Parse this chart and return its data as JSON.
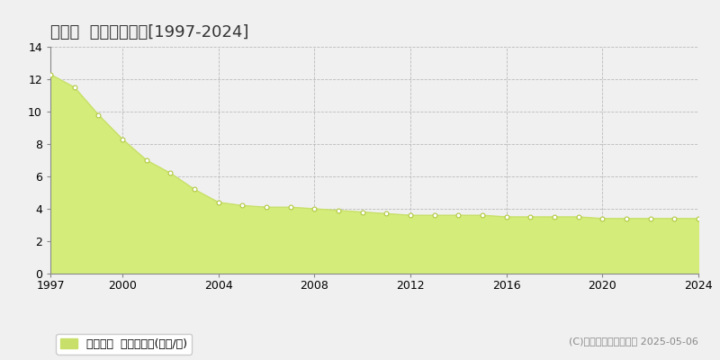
{
  "title": "長柄町  基準地価推移[1997-2024]",
  "years": [
    1997,
    1998,
    1999,
    2000,
    2001,
    2002,
    2003,
    2004,
    2005,
    2006,
    2007,
    2008,
    2009,
    2010,
    2011,
    2012,
    2013,
    2014,
    2015,
    2016,
    2017,
    2018,
    2019,
    2020,
    2021,
    2022,
    2023,
    2024
  ],
  "values": [
    12.3,
    11.5,
    9.8,
    8.3,
    7.0,
    6.2,
    5.2,
    4.4,
    4.2,
    4.1,
    4.1,
    4.0,
    3.9,
    3.8,
    3.7,
    3.6,
    3.6,
    3.6,
    3.6,
    3.5,
    3.5,
    3.5,
    3.5,
    3.4,
    3.4,
    3.4,
    3.4,
    3.4
  ],
  "line_color": "#c8e06a",
  "fill_color": "#d4ed7a",
  "marker_color": "#ffffff",
  "marker_edge_color": "#b0c840",
  "background_color": "#f0f0f0",
  "plot_bg_color": "#f0f0f0",
  "grid_color": "#bbbbbb",
  "ylim": [
    0,
    14
  ],
  "yticks": [
    0,
    2,
    4,
    6,
    8,
    10,
    12,
    14
  ],
  "xticks": [
    1997,
    2000,
    2004,
    2008,
    2012,
    2016,
    2020,
    2024
  ],
  "legend_label": "基準地価  平均坊単価(万円/坊)",
  "legend_color": "#c8e06a",
  "copyright_text": "(C)土地価格ドットコム 2025-05-06",
  "title_fontsize": 13,
  "tick_fontsize": 9,
  "legend_fontsize": 9,
  "copyright_fontsize": 8
}
